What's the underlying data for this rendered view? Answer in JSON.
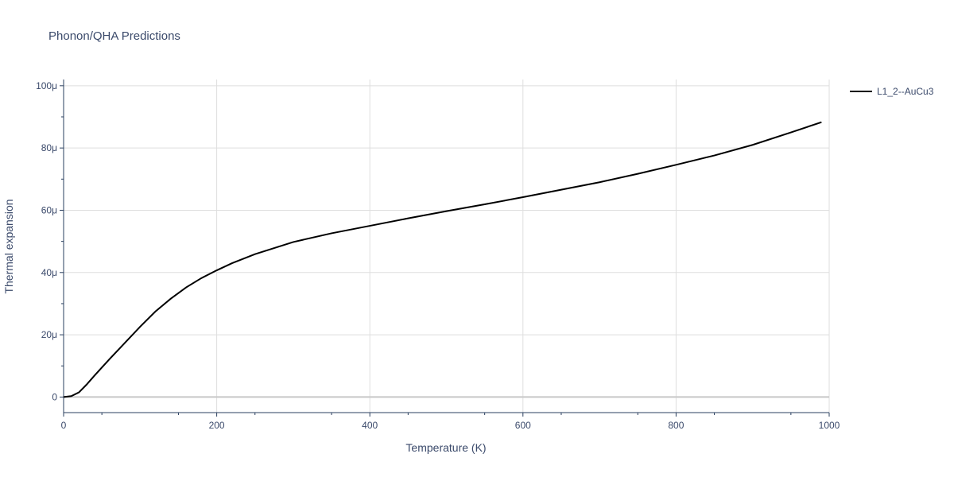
{
  "chart_data": {
    "type": "line",
    "title": "Phonon/QHA Predictions",
    "xlabel": "Temperature (K)",
    "ylabel": "Thermal expansion",
    "xlim": [
      0,
      1000
    ],
    "ylim": [
      -5e-06,
      0.000102
    ],
    "x_ticks": [
      0,
      200,
      400,
      600,
      800,
      1000
    ],
    "x_tick_labels": [
      "0",
      "200",
      "400",
      "600",
      "800",
      "1000"
    ],
    "y_ticks": [
      0,
      2e-05,
      4e-05,
      6e-05,
      8e-05,
      0.0001
    ],
    "y_tick_labels": [
      "0",
      "20μ",
      "40μ",
      "60μ",
      "80μ",
      "100μ"
    ],
    "grid": true,
    "legend_position": "top-right",
    "series": [
      {
        "name": "L1_2--AuCu3",
        "color": "#000000",
        "x": [
          0,
          10,
          20,
          30,
          40,
          60,
          80,
          100,
          120,
          140,
          160,
          180,
          200,
          220,
          250,
          300,
          350,
          400,
          450,
          500,
          550,
          600,
          650,
          700,
          750,
          800,
          850,
          900,
          950,
          990
        ],
        "y": [
          0,
          3e-07,
          1.5e-06,
          4e-06,
          6.8e-06,
          1.22e-05,
          1.74e-05,
          2.26e-05,
          2.75e-05,
          3.16e-05,
          3.52e-05,
          3.82e-05,
          4.07e-05,
          4.3e-05,
          4.59e-05,
          4.98e-05,
          5.26e-05,
          5.5e-05,
          5.74e-05,
          5.97e-05,
          6.19e-05,
          6.42e-05,
          6.66e-05,
          6.9e-05,
          7.17e-05,
          7.46e-05,
          7.76e-05,
          8.1e-05,
          8.5e-05,
          8.83e-05
        ]
      }
    ]
  }
}
